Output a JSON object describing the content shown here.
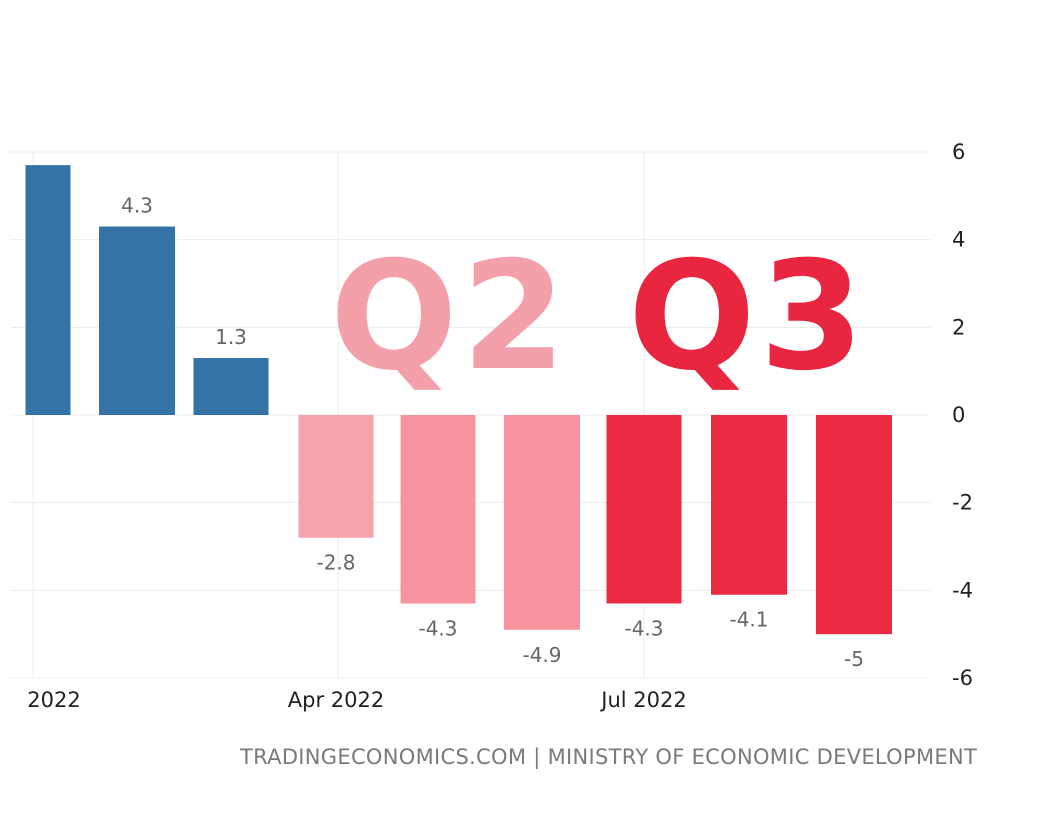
{
  "chart_data": {
    "type": "bar",
    "categories": [
      "Jan 2022",
      "Feb 2022",
      "Mar 2022",
      "Apr 2022",
      "May 2022",
      "Jun 2022",
      "Jul 2022",
      "Aug 2022",
      "Sep 2022"
    ],
    "values": [
      5.7,
      4.3,
      1.3,
      -2.8,
      -4.3,
      -4.9,
      -4.3,
      -4.1,
      -5
    ],
    "data_labels": [
      "",
      "4.3",
      "1.3",
      "-2.8",
      "-4.3",
      "-4.9",
      "-4.3",
      "-4.1",
      "-5"
    ],
    "bar_colors": [
      "#3572a5",
      "#3572a5",
      "#3572a5",
      "#f7a3ad",
      "#f8949f",
      "#f8949f",
      "#ec2b43",
      "#ec2b43",
      "#ec2b43"
    ],
    "ylim": [
      -6,
      6
    ],
    "y_ticks": [
      "6",
      "4",
      "2",
      "0",
      "-2",
      "-4",
      "-6"
    ],
    "x_tick_labels": [
      {
        "label": "2022",
        "category": "Jan 2022"
      },
      {
        "label": "Apr 2022",
        "category": "Apr 2022"
      },
      {
        "label": "Jul 2022",
        "category": "Jul 2022"
      }
    ],
    "grid": true,
    "y_axis_side": "right",
    "annotations": [
      {
        "text": "Q2",
        "color": "#f4a0ab"
      },
      {
        "text": "Q3",
        "color": "#e8263f"
      }
    ]
  },
  "source": "TRADINGECONOMICS.COM | MINISTRY OF ECONOMIC DEVELOPMENT"
}
